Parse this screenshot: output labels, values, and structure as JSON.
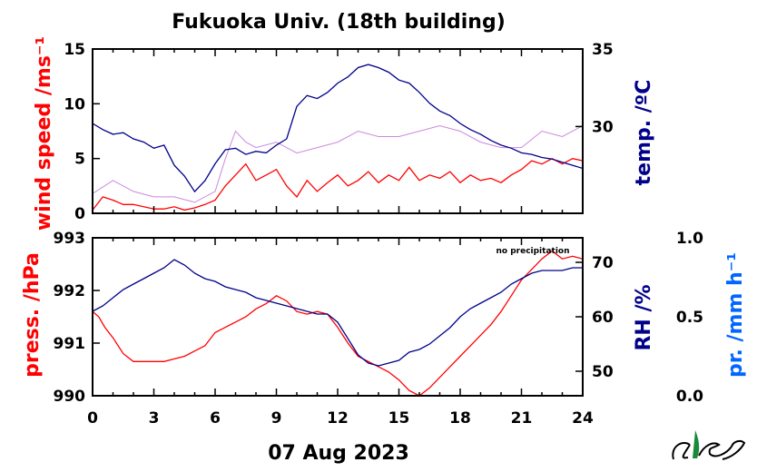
{
  "chart_data": [
    {
      "type": "line",
      "title": "Fukuoka Univ. (18th building)",
      "x_range": [
        0,
        24
      ],
      "y_left": {
        "label": "wind speed /ms⁻¹",
        "range": [
          0,
          15
        ],
        "ticks": [
          0,
          5,
          10,
          15
        ],
        "color": "#ff0000"
      },
      "y_right": {
        "label": "temp. /ºC",
        "range": [
          24.4,
          35
        ],
        "ticks": [
          30,
          35
        ],
        "color": "#00008b"
      },
      "series": [
        {
          "axis": "left",
          "color": "#ff0000",
          "x": [
            0,
            0.5,
            1,
            1.5,
            2,
            2.5,
            3,
            3.5,
            4,
            4.5,
            5,
            5.5,
            6,
            6.5,
            7,
            7.5,
            8,
            8.5,
            9,
            9.5,
            10,
            10.5,
            11,
            11.5,
            12,
            12.5,
            13,
            13.5,
            14,
            14.5,
            15,
            15.5,
            16,
            16.5,
            17,
            17.5,
            18,
            18.5,
            19,
            19.5,
            20,
            20.5,
            21,
            21.5,
            22,
            22.5,
            23,
            23.5,
            24
          ],
          "y": [
            0.3,
            1.5,
            1.2,
            0.8,
            0.8,
            0.6,
            0.4,
            0.4,
            0.6,
            0.3,
            0.5,
            0.8,
            1.2,
            2.5,
            3.5,
            4.5,
            3.0,
            3.5,
            4.0,
            2.5,
            1.5,
            3.0,
            2.0,
            2.8,
            3.5,
            2.5,
            3.0,
            3.8,
            2.8,
            3.5,
            3.0,
            4.2,
            3.0,
            3.5,
            3.2,
            3.8,
            2.8,
            3.5,
            3.0,
            3.2,
            2.8,
            3.5,
            4.0,
            4.8,
            4.5,
            5.0,
            4.5,
            5.0,
            4.8
          ]
        },
        {
          "axis": "left",
          "color": "#cc88dd",
          "name": "",
          "x": [
            0,
            1,
            2,
            3,
            4,
            5,
            6,
            6.5,
            7,
            7.5,
            8,
            9,
            10,
            11,
            12,
            13,
            14,
            15,
            16,
            17,
            18,
            19,
            20,
            21,
            22,
            23,
            24
          ],
          "y": [
            1.8,
            3.0,
            2.0,
            1.5,
            1.5,
            1.0,
            2.0,
            5.0,
            7.5,
            6.5,
            6.0,
            6.5,
            5.5,
            6.0,
            6.5,
            7.5,
            7.0,
            7.0,
            7.5,
            8.0,
            7.5,
            6.5,
            6.0,
            6.0,
            7.5,
            7.0,
            8.0
          ]
        },
        {
          "axis": "right",
          "color": "#00008b",
          "x": [
            0,
            0.5,
            1,
            1.5,
            2,
            2.5,
            3,
            3.5,
            4,
            4.5,
            5,
            5.5,
            6,
            6.5,
            7,
            7.5,
            8,
            8.5,
            9,
            9.5,
            10,
            10.5,
            11,
            11.5,
            12,
            12.5,
            13,
            13.5,
            14,
            14.5,
            15,
            15.5,
            16,
            16.5,
            17,
            17.5,
            18,
            18.5,
            19,
            19.5,
            20,
            20.5,
            21,
            21.5,
            22,
            22.5,
            23,
            23.5,
            24
          ],
          "y": [
            30.2,
            29.8,
            29.5,
            29.6,
            29.2,
            29.0,
            28.6,
            28.8,
            27.5,
            26.8,
            25.8,
            26.5,
            27.6,
            28.5,
            28.6,
            28.2,
            28.4,
            28.3,
            28.8,
            29.2,
            31.3,
            32.0,
            31.8,
            32.2,
            32.8,
            33.2,
            33.8,
            34.0,
            33.8,
            33.5,
            33.0,
            32.8,
            32.2,
            31.5,
            31.0,
            30.7,
            30.2,
            29.8,
            29.5,
            29.1,
            28.8,
            28.6,
            28.3,
            28.2,
            28.0,
            27.9,
            27.7,
            27.5,
            27.3
          ]
        }
      ]
    },
    {
      "type": "line",
      "x_range": [
        0,
        24
      ],
      "xticks": [
        0,
        3,
        6,
        9,
        12,
        15,
        18,
        21,
        24
      ],
      "xlabel": "07 Aug 2023",
      "y_left": {
        "label": "press. /hPa",
        "range": [
          990,
          993
        ],
        "ticks": [
          990,
          991,
          992,
          993
        ],
        "color": "#ff0000"
      },
      "y_right": {
        "label": "RH /%",
        "range": [
          45.5,
          74.5
        ],
        "ticks": [
          50,
          60,
          70
        ],
        "color": "#00008b"
      },
      "y_extra": {
        "label": "pr. /mm h⁻¹",
        "range": [
          0,
          1
        ],
        "ticks": [
          "0.0",
          "0.5",
          "1.0"
        ],
        "color": "#0066ff"
      },
      "annotation": "no precipitation",
      "series": [
        {
          "axis": "left",
          "color": "#ff0000",
          "x": [
            0,
            0.3,
            0.6,
            1,
            1.5,
            2,
            2.5,
            3,
            3.5,
            4,
            4.5,
            5,
            5.5,
            6,
            6.5,
            7,
            7.5,
            8,
            8.5,
            9,
            9.5,
            10,
            10.5,
            11,
            11.5,
            12,
            12.5,
            13,
            13.5,
            14,
            14.5,
            15,
            15.5,
            16,
            16.5,
            17,
            17.5,
            18,
            18.5,
            19,
            19.5,
            20,
            20.5,
            21,
            21.5,
            22,
            22.5,
            23,
            23.5,
            24
          ],
          "y": [
            991.6,
            991.5,
            991.3,
            991.1,
            990.8,
            990.65,
            990.65,
            990.65,
            990.65,
            990.7,
            990.75,
            990.85,
            990.95,
            991.2,
            991.3,
            991.4,
            991.5,
            991.65,
            991.75,
            991.9,
            991.8,
            991.6,
            991.55,
            991.6,
            991.55,
            991.3,
            991.0,
            990.75,
            990.65,
            990.55,
            990.45,
            990.3,
            990.1,
            990.0,
            990.15,
            990.35,
            990.55,
            990.75,
            990.95,
            991.15,
            991.35,
            991.6,
            991.9,
            992.2,
            992.4,
            992.6,
            992.75,
            992.6,
            992.65,
            992.6
          ]
        },
        {
          "axis": "right",
          "color": "#00008b",
          "x": [
            0,
            0.5,
            1,
            1.5,
            2,
            2.5,
            3,
            3.5,
            4,
            4.5,
            5,
            5.5,
            6,
            6.5,
            7,
            7.5,
            8,
            8.5,
            9,
            9.5,
            10,
            10.5,
            11,
            11.5,
            12,
            12.5,
            13,
            13.5,
            14,
            14.5,
            15,
            15.5,
            16,
            16.5,
            17,
            17.5,
            18,
            18.5,
            19,
            19.5,
            20,
            20.5,
            21,
            21.5,
            22,
            22.5,
            23,
            23.5,
            24
          ],
          "y": [
            61,
            62,
            63.5,
            65,
            66,
            67,
            68,
            69,
            70.5,
            69.5,
            68,
            67,
            66.5,
            65.5,
            65,
            64.5,
            63.5,
            63,
            62.5,
            62,
            61.5,
            61,
            60.5,
            60.5,
            59,
            56,
            53,
            51.5,
            51,
            51.5,
            52,
            53.5,
            54,
            55,
            56.5,
            58,
            60,
            61.5,
            62.5,
            63.5,
            64.5,
            66,
            67,
            68,
            68.5,
            68.5,
            68.5,
            69,
            69
          ]
        }
      ]
    }
  ]
}
